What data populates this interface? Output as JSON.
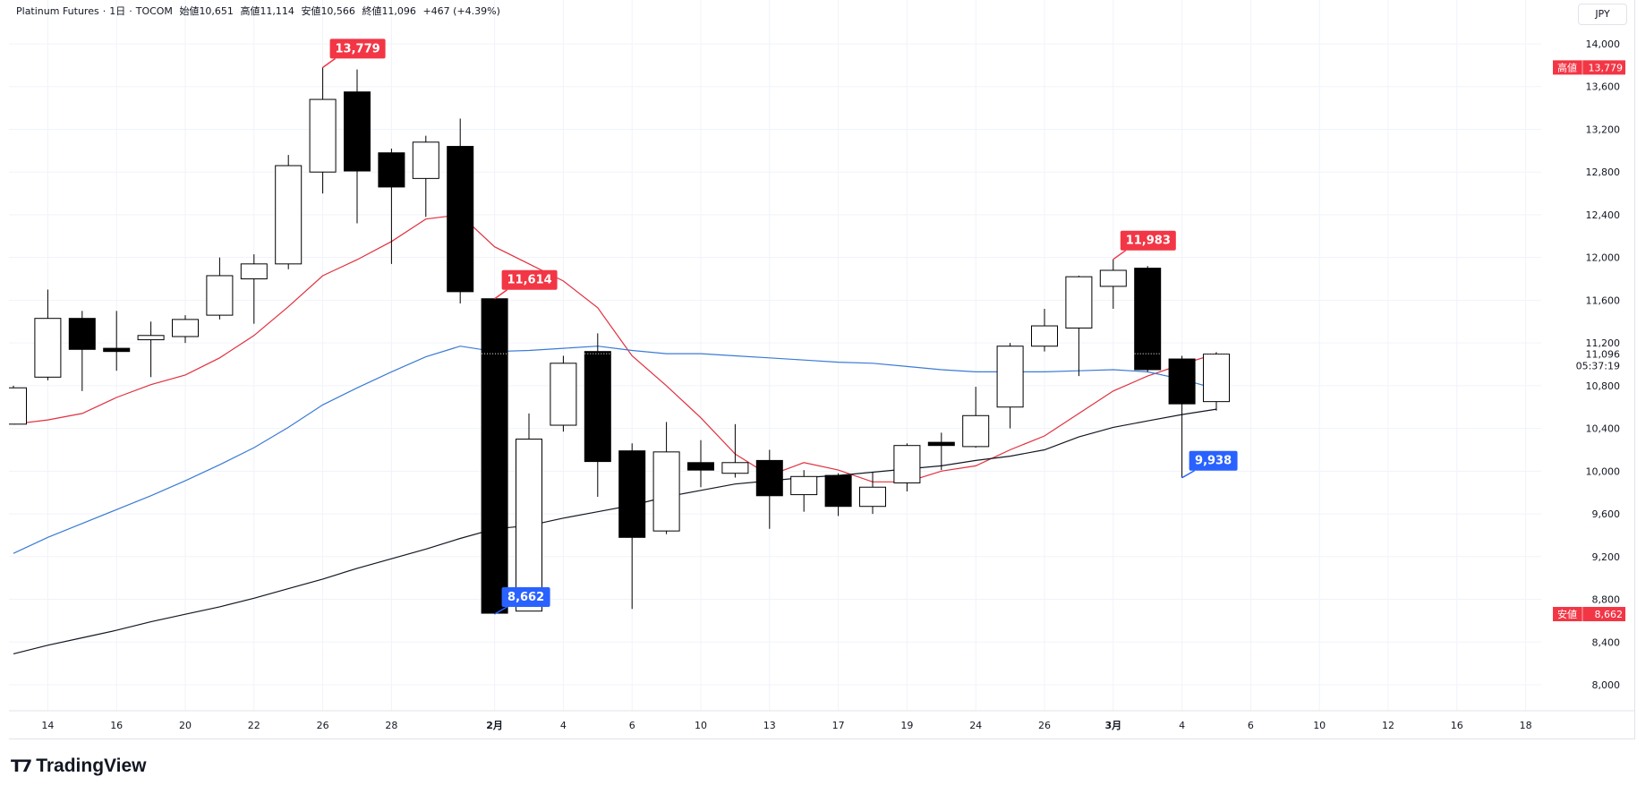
{
  "header": {
    "symbol": "Platinum Futures",
    "interval": "1日",
    "exchange": "TOCOM",
    "open_label": "始値",
    "open": "10,651",
    "high_label": "高値",
    "high": "11,114",
    "low_label": "安値",
    "low": "10,566",
    "close_label": "終値",
    "close": "11,096",
    "change": "+467 (+4.39%)"
  },
  "currency_button": "JPY",
  "logo_text": "TradingView",
  "colors": {
    "up_body": "#ffffff",
    "down_body": "#000000",
    "wick": "#000000",
    "ma_red": "#e0303e",
    "ma_blue": "#3a7bd5",
    "ma_black": "#131722",
    "label_red": "#f23645",
    "label_blue": "#2962ff",
    "grid": "#f0f3fa"
  },
  "chart_data": {
    "type": "candlestick",
    "price_ticks": [
      "14,000",
      "13,600",
      "13,200",
      "12,800",
      "12,400",
      "12,000",
      "11,600",
      "11,200",
      "10,800",
      "10,400",
      "10,000",
      "9,600",
      "9,200",
      "8,800",
      "8,400",
      "8,000"
    ],
    "price_tick_values": [
      14000,
      13600,
      13200,
      12800,
      12400,
      12000,
      11600,
      11200,
      10800,
      10400,
      10000,
      9600,
      9200,
      8800,
      8400,
      8000
    ],
    "ylim": [
      7600,
      14300
    ],
    "x_ticks": [
      {
        "label": "14",
        "slot": 1,
        "bold": false
      },
      {
        "label": "16",
        "slot": 3,
        "bold": false
      },
      {
        "label": "20",
        "slot": 5,
        "bold": false
      },
      {
        "label": "22",
        "slot": 7,
        "bold": false
      },
      {
        "label": "26",
        "slot": 9,
        "bold": false
      },
      {
        "label": "28",
        "slot": 11,
        "bold": false
      },
      {
        "label": "2月",
        "slot": 14,
        "bold": true
      },
      {
        "label": "4",
        "slot": 16,
        "bold": false
      },
      {
        "label": "6",
        "slot": 18,
        "bold": false
      },
      {
        "label": "10",
        "slot": 20,
        "bold": false
      },
      {
        "label": "13",
        "slot": 22,
        "bold": false
      },
      {
        "label": "17",
        "slot": 24,
        "bold": false
      },
      {
        "label": "19",
        "slot": 26,
        "bold": false
      },
      {
        "label": "24",
        "slot": 28,
        "bold": false
      },
      {
        "label": "26",
        "slot": 30,
        "bold": false
      },
      {
        "label": "3月",
        "slot": 32,
        "bold": true
      },
      {
        "label": "4",
        "slot": 34,
        "bold": false
      },
      {
        "label": "6",
        "slot": 36,
        "bold": false
      },
      {
        "label": "10",
        "slot": 38,
        "bold": false
      },
      {
        "label": "12",
        "slot": 40,
        "bold": false
      },
      {
        "label": "16",
        "slot": 42,
        "bold": false
      },
      {
        "label": "18",
        "slot": 44,
        "bold": false
      }
    ],
    "candles": [
      {
        "slot": 0,
        "o": 10440,
        "h": 10800,
        "l": 10440,
        "c": 10780
      },
      {
        "slot": 1,
        "o": 10880,
        "h": 11700,
        "l": 10850,
        "c": 11430
      },
      {
        "slot": 2,
        "o": 11430,
        "h": 11500,
        "l": 10750,
        "c": 11140
      },
      {
        "slot": 3,
        "o": 11150,
        "h": 11500,
        "l": 10940,
        "c": 11120
      },
      {
        "slot": 4,
        "o": 11230,
        "h": 11400,
        "l": 10880,
        "c": 11270
      },
      {
        "slot": 5,
        "o": 11260,
        "h": 11460,
        "l": 11200,
        "c": 11420
      },
      {
        "slot": 6,
        "o": 11460,
        "h": 12000,
        "l": 11420,
        "c": 11830
      },
      {
        "slot": 7,
        "o": 11800,
        "h": 12030,
        "l": 11380,
        "c": 11940
      },
      {
        "slot": 8,
        "o": 11940,
        "h": 12960,
        "l": 11890,
        "c": 12860
      },
      {
        "slot": 9,
        "o": 12800,
        "h": 13779,
        "l": 12600,
        "c": 13480
      },
      {
        "slot": 10,
        "o": 13550,
        "h": 13760,
        "l": 12320,
        "c": 12810
      },
      {
        "slot": 11,
        "o": 12980,
        "h": 13020,
        "l": 11940,
        "c": 12660
      },
      {
        "slot": 12,
        "o": 12740,
        "h": 13140,
        "l": 12380,
        "c": 13080
      },
      {
        "slot": 13,
        "o": 13040,
        "h": 13300,
        "l": 11570,
        "c": 11680
      },
      {
        "slot": 14,
        "o": 11614,
        "h": 11614,
        "l": 8662,
        "c": 8670
      },
      {
        "slot": 15,
        "o": 8690,
        "h": 10540,
        "l": 8690,
        "c": 10300
      },
      {
        "slot": 16,
        "o": 10430,
        "h": 11080,
        "l": 10370,
        "c": 11010
      },
      {
        "slot": 17,
        "o": 11120,
        "h": 11290,
        "l": 9760,
        "c": 10090
      },
      {
        "slot": 18,
        "o": 10190,
        "h": 10260,
        "l": 8710,
        "c": 9380
      },
      {
        "slot": 19,
        "o": 9440,
        "h": 10460,
        "l": 9410,
        "c": 10180
      },
      {
        "slot": 20,
        "o": 10080,
        "h": 10290,
        "l": 9850,
        "c": 10010
      },
      {
        "slot": 21,
        "o": 9980,
        "h": 10440,
        "l": 9940,
        "c": 10080
      },
      {
        "slot": 22,
        "o": 10100,
        "h": 10200,
        "l": 9460,
        "c": 9770
      },
      {
        "slot": 23,
        "o": 9780,
        "h": 10010,
        "l": 9620,
        "c": 9950
      },
      {
        "slot": 24,
        "o": 9960,
        "h": 9980,
        "l": 9580,
        "c": 9670
      },
      {
        "slot": 25,
        "o": 9670,
        "h": 9990,
        "l": 9600,
        "c": 9850
      },
      {
        "slot": 26,
        "o": 9890,
        "h": 10260,
        "l": 9810,
        "c": 10240
      },
      {
        "slot": 27,
        "o": 10270,
        "h": 10360,
        "l": 10010,
        "c": 10240
      },
      {
        "slot": 28,
        "o": 10230,
        "h": 10790,
        "l": 10220,
        "c": 10520
      },
      {
        "slot": 29,
        "o": 10600,
        "h": 11200,
        "l": 10400,
        "c": 11170
      },
      {
        "slot": 30,
        "o": 11170,
        "h": 11520,
        "l": 11120,
        "c": 11360
      },
      {
        "slot": 31,
        "o": 11340,
        "h": 11830,
        "l": 10890,
        "c": 11820
      },
      {
        "slot": 32,
        "o": 11730,
        "h": 11983,
        "l": 11520,
        "c": 11880
      },
      {
        "slot": 33,
        "o": 11900,
        "h": 11920,
        "l": 10930,
        "c": 10950
      },
      {
        "slot": 34,
        "o": 11050,
        "h": 11080,
        "l": 9938,
        "c": 10630
      },
      {
        "slot": 35,
        "o": 10651,
        "h": 11114,
        "l": 10566,
        "c": 11096
      }
    ],
    "series": [
      {
        "color": "ma_red",
        "points": [
          [
            0,
            10440
          ],
          [
            1,
            10480
          ],
          [
            2,
            10540
          ],
          [
            3,
            10690
          ],
          [
            4,
            10810
          ],
          [
            5,
            10900
          ],
          [
            6,
            11060
          ],
          [
            7,
            11270
          ],
          [
            8,
            11540
          ],
          [
            9,
            11830
          ],
          [
            10,
            11980
          ],
          [
            11,
            12150
          ],
          [
            12,
            12360
          ],
          [
            13,
            12400
          ],
          [
            14,
            12100
          ],
          [
            15,
            11940
          ],
          [
            16,
            11780
          ],
          [
            17,
            11530
          ],
          [
            18,
            11080
          ],
          [
            19,
            10800
          ],
          [
            20,
            10500
          ],
          [
            21,
            10160
          ],
          [
            22,
            9960
          ],
          [
            23,
            10080
          ],
          [
            24,
            10010
          ],
          [
            25,
            9900
          ],
          [
            26,
            9900
          ],
          [
            27,
            10000
          ],
          [
            28,
            10050
          ],
          [
            29,
            10200
          ],
          [
            30,
            10330
          ],
          [
            31,
            10540
          ],
          [
            32,
            10750
          ],
          [
            33,
            10890
          ],
          [
            34,
            11000
          ],
          [
            35,
            11100
          ]
        ]
      },
      {
        "color": "ma_blue",
        "points": [
          [
            0,
            9230
          ],
          [
            1,
            9380
          ],
          [
            2,
            9510
          ],
          [
            3,
            9640
          ],
          [
            4,
            9770
          ],
          [
            5,
            9910
          ],
          [
            6,
            10060
          ],
          [
            7,
            10220
          ],
          [
            8,
            10410
          ],
          [
            9,
            10620
          ],
          [
            10,
            10780
          ],
          [
            11,
            10930
          ],
          [
            12,
            11070
          ],
          [
            13,
            11170
          ],
          [
            14,
            11120
          ],
          [
            15,
            11130
          ],
          [
            16,
            11150
          ],
          [
            17,
            11170
          ],
          [
            18,
            11130
          ],
          [
            19,
            11100
          ],
          [
            20,
            11100
          ],
          [
            21,
            11080
          ],
          [
            22,
            11060
          ],
          [
            23,
            11040
          ],
          [
            24,
            11020
          ],
          [
            25,
            11010
          ],
          [
            26,
            10980
          ],
          [
            27,
            10950
          ],
          [
            28,
            10930
          ],
          [
            29,
            10930
          ],
          [
            30,
            10930
          ],
          [
            31,
            10940
          ],
          [
            32,
            10950
          ],
          [
            33,
            10930
          ],
          [
            34,
            10860
          ],
          [
            35,
            10770
          ]
        ]
      },
      {
        "color": "ma_black",
        "points": [
          [
            0,
            8290
          ],
          [
            1,
            8370
          ],
          [
            2,
            8440
          ],
          [
            3,
            8510
          ],
          [
            4,
            8590
          ],
          [
            5,
            8660
          ],
          [
            6,
            8730
          ],
          [
            7,
            8810
          ],
          [
            8,
            8900
          ],
          [
            9,
            8990
          ],
          [
            10,
            9090
          ],
          [
            11,
            9180
          ],
          [
            12,
            9270
          ],
          [
            13,
            9370
          ],
          [
            14,
            9460
          ],
          [
            15,
            9490
          ],
          [
            16,
            9560
          ],
          [
            17,
            9620
          ],
          [
            18,
            9680
          ],
          [
            19,
            9760
          ],
          [
            20,
            9820
          ],
          [
            21,
            9880
          ],
          [
            22,
            9910
          ],
          [
            23,
            9940
          ],
          [
            24,
            9960
          ],
          [
            25,
            9990
          ],
          [
            26,
            10020
          ],
          [
            27,
            10050
          ],
          [
            28,
            10100
          ],
          [
            29,
            10140
          ],
          [
            30,
            10200
          ],
          [
            31,
            10320
          ],
          [
            32,
            10410
          ],
          [
            33,
            10470
          ],
          [
            34,
            10530
          ],
          [
            35,
            10580
          ]
        ]
      }
    ],
    "annotations": [
      {
        "text": "13,779",
        "slot": 9,
        "price": 13779,
        "color": "label_red",
        "dir": "up"
      },
      {
        "text": "11,614",
        "slot": 14,
        "price": 11614,
        "color": "label_red",
        "dir": "up"
      },
      {
        "text": "11,983",
        "slot": 32,
        "price": 11983,
        "color": "label_red",
        "dir": "up"
      },
      {
        "text": "8,662",
        "slot": 14,
        "price": 8662,
        "color": "label_blue",
        "dir": "down"
      },
      {
        "text": "9,938",
        "slot": 34,
        "price": 9938,
        "color": "label_blue",
        "dir": "down"
      }
    ],
    "axis_badges": [
      {
        "label": "高値",
        "value": "13,779",
        "price": 13779
      },
      {
        "label": "安値",
        "value": "8,662",
        "price": 8662
      }
    ],
    "last_price": "11,096",
    "last_price_value": 11096,
    "countdown": "05:37:19"
  }
}
